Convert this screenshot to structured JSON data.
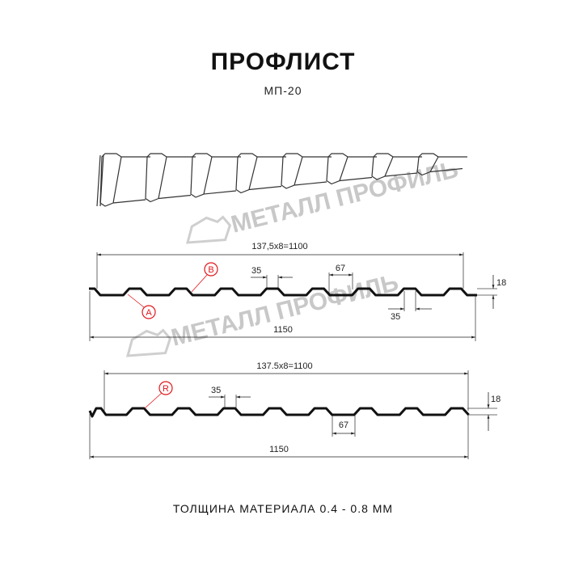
{
  "header": {
    "title": "ПРОФЛИСТ",
    "subtitle": "МП-20"
  },
  "watermark": {
    "text": "МЕТАЛЛ ПРОФИЛЬ"
  },
  "profile_1": {
    "pitch_label": "137,5x8=1100",
    "width_label": "1150",
    "top_width_label": "35",
    "bottom_width_label": "67",
    "bottom_rib_label": "35",
    "height_label": "18",
    "callouts": [
      "B",
      "A"
    ]
  },
  "profile_2": {
    "pitch_label": "137.5x8=1100",
    "width_label": "1150",
    "top_width_label": "35",
    "bottom_width_label": "67",
    "height_label": "18",
    "callouts": [
      "R"
    ]
  },
  "footer": {
    "thickness": "ТОЛЩИНА МАТЕРИАЛА 0.4 - 0.8 ММ"
  },
  "colors": {
    "profile": "#111111",
    "callout": "#e0161b",
    "watermark": "#c8c8c8"
  }
}
